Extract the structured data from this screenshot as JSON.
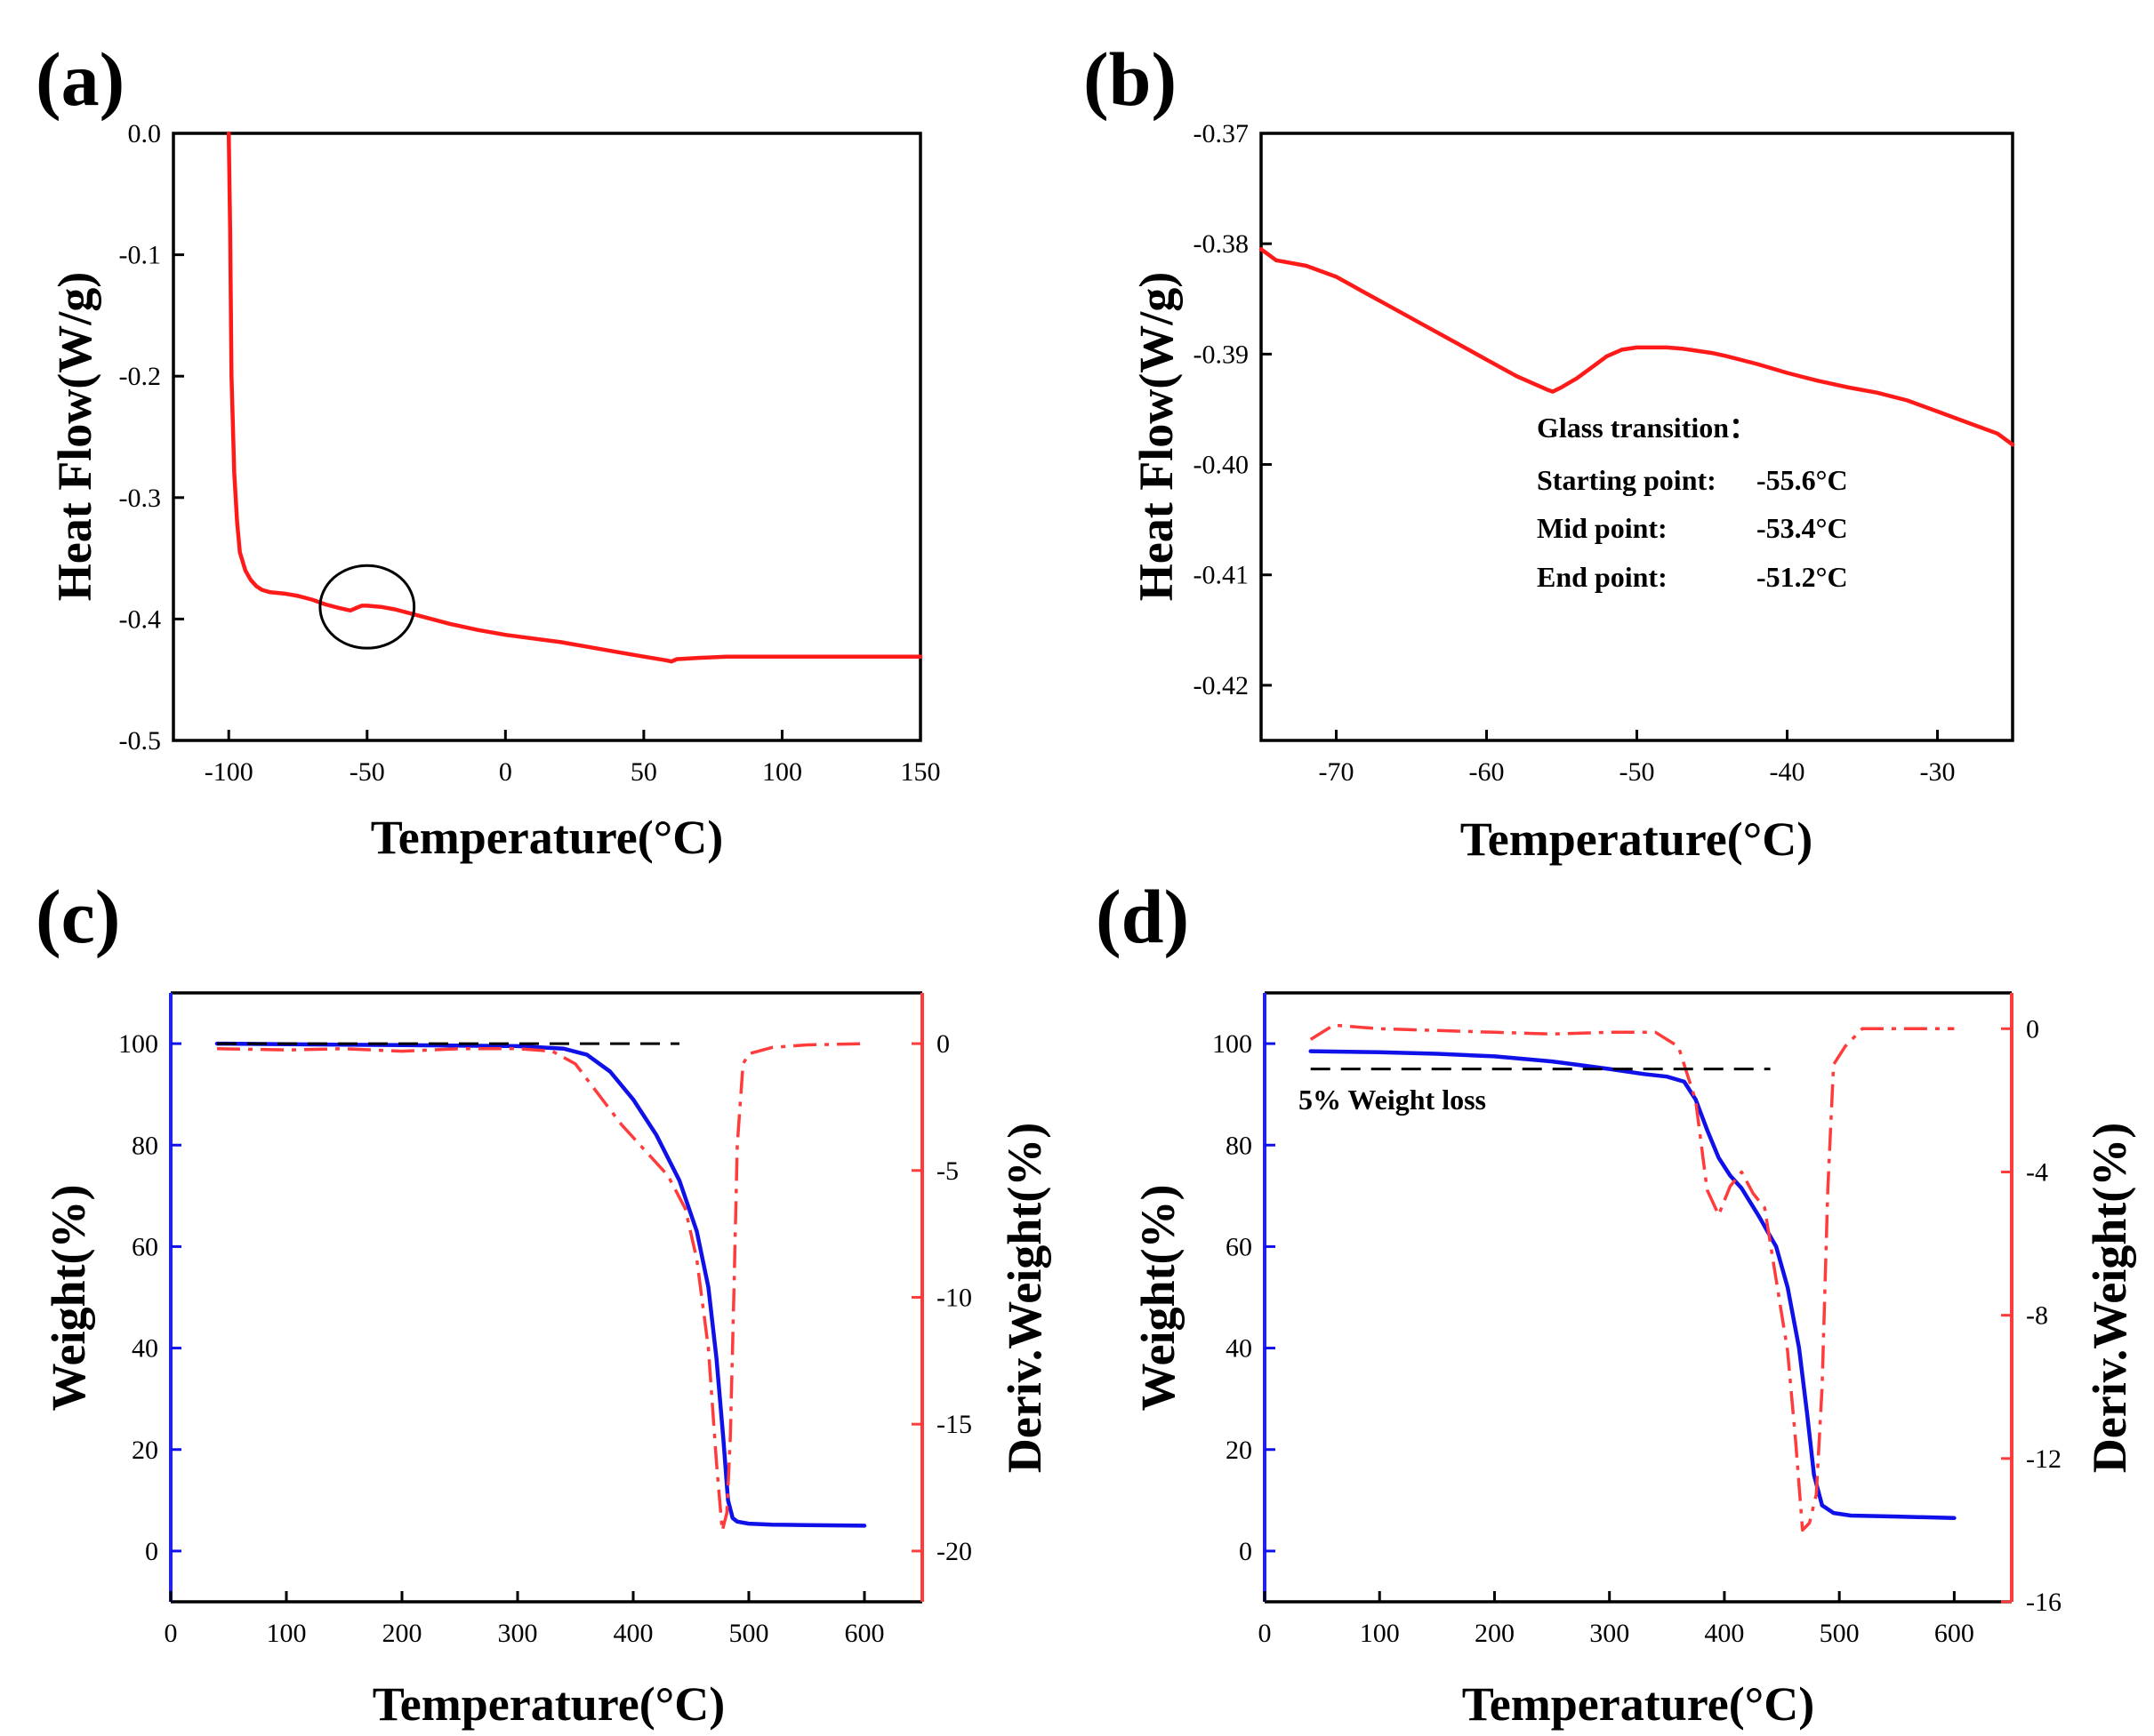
{
  "colors": {
    "dsc": "#ff1a1a",
    "weight": "#1010e8",
    "deriv": "#ff3b3b",
    "black": "#000000"
  },
  "chart_data": [
    {
      "panel": "(a)",
      "type": "line",
      "xlabel": "Temperature(°C)",
      "ylabel": "Heat Flow(W/g)",
      "xlim": [
        -120,
        150
      ],
      "ylim": [
        -0.5,
        0.0
      ],
      "xticks": [
        -100,
        -50,
        0,
        50,
        100,
        150
      ],
      "xtick_labels": [
        "-100",
        "-50",
        "0",
        "50",
        "100",
        "150"
      ],
      "yticks": [
        0.0,
        -0.1,
        -0.2,
        -0.3,
        -0.4,
        -0.5
      ],
      "ytick_labels": [
        "0.0",
        "-0.1",
        "-0.2",
        "-0.3",
        "-0.4",
        "-0.5"
      ],
      "series": [
        {
          "name": "DSC heat flow",
          "color": "#ff1a1a",
          "style": "solid",
          "x": [
            -100,
            -99.5,
            -99,
            -98,
            -97,
            -96,
            -94,
            -92,
            -90,
            -88,
            -85,
            -80,
            -75,
            -70,
            -65,
            -60,
            -56,
            -54,
            -52,
            -50,
            -45,
            -40,
            -30,
            -20,
            -10,
            0,
            10,
            20,
            30,
            40,
            50,
            58,
            60,
            62,
            70,
            80,
            90,
            100,
            110,
            120,
            130,
            140,
            150
          ],
          "y": [
            0.0,
            -0.08,
            -0.2,
            -0.28,
            -0.32,
            -0.345,
            -0.36,
            -0.368,
            -0.373,
            -0.376,
            -0.378,
            -0.379,
            -0.381,
            -0.384,
            -0.388,
            -0.391,
            -0.393,
            -0.391,
            -0.389,
            -0.389,
            -0.39,
            -0.392,
            -0.398,
            -0.404,
            -0.409,
            -0.413,
            -0.416,
            -0.419,
            -0.423,
            -0.427,
            -0.431,
            -0.434,
            -0.435,
            -0.433,
            -0.432,
            -0.431,
            -0.431,
            -0.431,
            -0.431,
            -0.431,
            -0.431,
            -0.431,
            -0.431
          ]
        }
      ],
      "annotations": [
        {
          "type": "circle",
          "center": [
            -50,
            -0.39
          ],
          "rx": 17,
          "ry": 0.034
        }
      ]
    },
    {
      "panel": "(b)",
      "type": "line",
      "xlabel": "Temperature(°C)",
      "ylabel": "Heat Flow(W/g)",
      "xlim": [
        -75,
        -25
      ],
      "ylim": [
        -0.425,
        -0.37
      ],
      "xticks": [
        -70,
        -60,
        -50,
        -40,
        -30
      ],
      "xtick_labels": [
        "-70",
        "-60",
        "-50",
        "-40",
        "-30"
      ],
      "yticks": [
        -0.37,
        -0.38,
        -0.39,
        -0.4,
        -0.41,
        -0.42
      ],
      "ytick_labels": [
        "-0.37",
        "-0.38",
        "-0.39",
        "-0.40",
        "-0.41",
        "-0.42"
      ],
      "series": [
        {
          "name": "DSC heat flow (zoom)",
          "color": "#ff1a1a",
          "style": "solid",
          "x": [
            -75,
            -74.5,
            -74,
            -72,
            -70,
            -68,
            -66,
            -64,
            -62,
            -60,
            -58,
            -56,
            -55.6,
            -55,
            -54,
            -53,
            -52,
            -51,
            -50,
            -49,
            -48,
            -47,
            -46,
            -45,
            -44,
            -42,
            -40,
            -38,
            -36,
            -34,
            -32,
            -30,
            -28,
            -26,
            -25
          ],
          "y": [
            -0.3805,
            -0.381,
            -0.3815,
            -0.382,
            -0.383,
            -0.3845,
            -0.386,
            -0.3875,
            -0.389,
            -0.3905,
            -0.392,
            -0.3932,
            -0.3934,
            -0.393,
            -0.3922,
            -0.3912,
            -0.3902,
            -0.3896,
            -0.3894,
            -0.3894,
            -0.3894,
            -0.3895,
            -0.3897,
            -0.3899,
            -0.3902,
            -0.3909,
            -0.3917,
            -0.3924,
            -0.393,
            -0.3935,
            -0.3942,
            -0.3952,
            -0.3962,
            -0.3972,
            -0.3982
          ]
        }
      ],
      "annotation_text": {
        "title": "Glass transition：",
        "start_label": "Starting point:",
        "start_value": "-55.6°C",
        "mid_label": "Mid point:",
        "mid_value": "-53.4°C",
        "end_label": "End point:",
        "end_value": "-51.2°C"
      }
    },
    {
      "panel": "(c)",
      "type": "line",
      "xlabel": "Temperature(°C)",
      "ylabel": "Weight(%)",
      "y2label": "Deriv.Weight(%)",
      "xlim": [
        0,
        650
      ],
      "ylim": [
        -10,
        110
      ],
      "y2lim": [
        -22,
        2
      ],
      "xticks": [
        0,
        100,
        200,
        300,
        400,
        500,
        600
      ],
      "xtick_labels": [
        "0",
        "100",
        "200",
        "300",
        "400",
        "500",
        "600"
      ],
      "yticks": [
        0,
        20,
        40,
        60,
        80,
        100
      ],
      "ytick_labels": [
        "0",
        "20",
        "40",
        "60",
        "80",
        "100"
      ],
      "y2ticks": [
        0,
        -5,
        -10,
        -15,
        -20
      ],
      "y2tick_labels": [
        "0",
        "-5",
        "-10",
        "-15",
        "-20"
      ],
      "series": [
        {
          "name": "Weight",
          "axis": "left",
          "color": "#1010e8",
          "style": "solid",
          "x": [
            40,
            100,
            200,
            300,
            340,
            360,
            380,
            400,
            420,
            440,
            455,
            465,
            472,
            478,
            482,
            486,
            490,
            500,
            520,
            550,
            600
          ],
          "y": [
            100,
            99.9,
            99.7,
            99.5,
            99,
            97.8,
            94.5,
            89,
            82,
            73,
            63,
            52,
            38,
            22,
            10,
            6.5,
            5.8,
            5.4,
            5.2,
            5.1,
            5
          ]
        },
        {
          "name": "Deriv. Weight",
          "axis": "right",
          "color": "#ff3b3b",
          "style": "dashdot",
          "x": [
            40,
            100,
            150,
            200,
            250,
            300,
            330,
            350,
            370,
            390,
            410,
            430,
            445,
            455,
            465,
            472,
            477,
            481,
            484,
            487,
            490,
            495,
            500,
            520,
            550,
            600
          ],
          "y": [
            -0.2,
            -0.25,
            -0.2,
            -0.3,
            -0.2,
            -0.2,
            -0.3,
            -0.8,
            -2,
            -3.2,
            -4.2,
            -5.2,
            -6.5,
            -8.5,
            -12,
            -16.5,
            -19.2,
            -18.5,
            -15.5,
            -10,
            -4,
            -0.8,
            -0.4,
            -0.15,
            -0.05,
            0
          ]
        },
        {
          "name": "Reference 100% line",
          "axis": "left",
          "color": "#000000",
          "style": "dashed",
          "x": [
            40,
            440
          ],
          "y": [
            100,
            100
          ]
        }
      ]
    },
    {
      "panel": "(d)",
      "type": "line",
      "xlabel": "Temperature(°C)",
      "ylabel": "Weight(%)",
      "y2label": "Deriv.Weight(%)",
      "xlim": [
        0,
        650
      ],
      "ylim": [
        -10,
        110
      ],
      "y2lim": [
        -16,
        1
      ],
      "xticks": [
        0,
        100,
        200,
        300,
        400,
        500,
        600
      ],
      "xtick_labels": [
        "0",
        "100",
        "200",
        "300",
        "400",
        "500",
        "600"
      ],
      "yticks": [
        0,
        20,
        40,
        60,
        80,
        100
      ],
      "ytick_labels": [
        "0",
        "20",
        "40",
        "60",
        "80",
        "100"
      ],
      "y2ticks": [
        0,
        -4,
        -8,
        -12,
        -16
      ],
      "y2tick_labels": [
        "0",
        "-4",
        "-8",
        "-12",
        "-16"
      ],
      "series": [
        {
          "name": "Weight",
          "axis": "left",
          "color": "#1010e8",
          "style": "solid",
          "x": [
            40,
            100,
            150,
            200,
            250,
            300,
            330,
            350,
            365,
            375,
            385,
            395,
            405,
            415,
            430,
            445,
            455,
            465,
            472,
            478,
            485,
            495,
            510,
            550,
            600
          ],
          "y": [
            98.5,
            98.3,
            98,
            97.5,
            96.5,
            95,
            94,
            93.5,
            92.5,
            89,
            83,
            77.5,
            74,
            71.5,
            66,
            60,
            52,
            40,
            27,
            15,
            9,
            7.5,
            7,
            6.8,
            6.5
          ]
        },
        {
          "name": "Deriv. Weight",
          "axis": "right",
          "color": "#ff3b3b",
          "style": "dashdot",
          "x": [
            40,
            60,
            100,
            150,
            200,
            250,
            300,
            340,
            360,
            375,
            385,
            395,
            400,
            405,
            415,
            425,
            435,
            445,
            455,
            462,
            468,
            474,
            480,
            485,
            490,
            495,
            505,
            520,
            600
          ],
          "y": [
            -0.3,
            0.1,
            0,
            -0.05,
            -0.1,
            -0.15,
            -0.1,
            -0.1,
            -0.5,
            -2,
            -4.5,
            -5.2,
            -4.8,
            -4.4,
            -4.0,
            -4.6,
            -5.0,
            -7.0,
            -9.0,
            -11.5,
            -14.0,
            -13.8,
            -13.0,
            -10.0,
            -4.5,
            -1.0,
            -0.5,
            0.0,
            0.0
          ]
        },
        {
          "name": "5% Weight loss line",
          "axis": "left",
          "color": "#000000",
          "style": "dashed",
          "x": [
            40,
            440
          ],
          "y": [
            95,
            95
          ]
        }
      ],
      "annotation_text": "5% Weight loss"
    }
  ]
}
